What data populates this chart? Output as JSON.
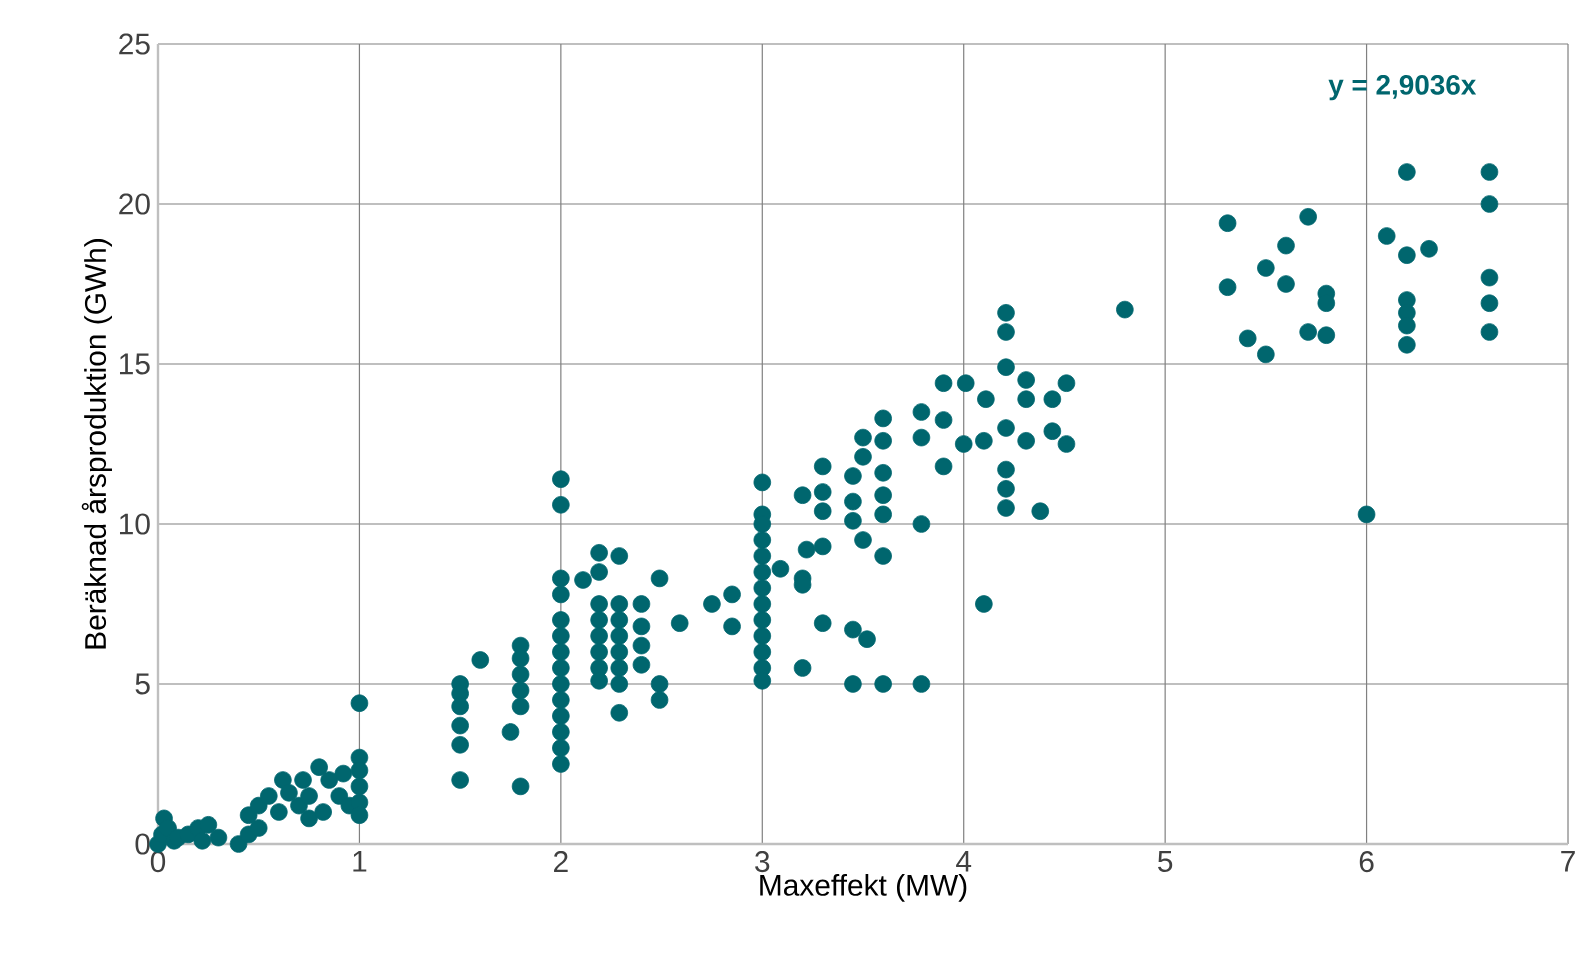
{
  "chart_data": {
    "type": "scatter",
    "xlabel": "Maxeffekt (MW)",
    "ylabel": "Beräknad årsproduktion (GWh)",
    "annotations": [
      "y = 2,9036x"
    ],
    "xlim": [
      0,
      7
    ],
    "ylim": [
      0,
      25
    ],
    "xticks": [
      0,
      1,
      2,
      3,
      4,
      5,
      6,
      7
    ],
    "yticks": [
      0,
      5,
      10,
      15,
      20,
      25
    ],
    "grid": true,
    "series": [
      {
        "color": "#00666e",
        "x": [
          0,
          0.02,
          0.03,
          0.05,
          0.08,
          0.1,
          0.15,
          0.2,
          0.22,
          0.25,
          0.3,
          0.4,
          0.45,
          0.45,
          0.5,
          0.5,
          0.55,
          0.6,
          0.62,
          0.65,
          0.7,
          0.72,
          0.75,
          0.75,
          0.8,
          0.82,
          0.85,
          0.9,
          0.92,
          0.95,
          1,
          1,
          1,
          1,
          1,
          1,
          1.5,
          1.5,
          1.5,
          1.5,
          1.5,
          1.5,
          1.6,
          1.75,
          1.8,
          1.8,
          1.8,
          1.8,
          1.8,
          1.8,
          2,
          2,
          2,
          2,
          2,
          2,
          2,
          2,
          2,
          2,
          2,
          2,
          2,
          2,
          2.11,
          2.19,
          2.19,
          2.19,
          2.19,
          2.19,
          2.19,
          2.19,
          2.19,
          2.29,
          2.29,
          2.29,
          2.29,
          2.29,
          2.29,
          2.29,
          2.29,
          2.4,
          2.4,
          2.4,
          2.4,
          2.49,
          2.49,
          2.49,
          2.59,
          2.75,
          2.85,
          2.85,
          3,
          3,
          3,
          3,
          3,
          3,
          3,
          3,
          3,
          3,
          3,
          3,
          3,
          3.09,
          3.2,
          3.2,
          3.2,
          3.2,
          3.22,
          3.3,
          3.3,
          3.3,
          3.3,
          3.3,
          3.45,
          3.45,
          3.45,
          3.45,
          3.45,
          3.5,
          3.5,
          3.5,
          3.52,
          3.6,
          3.6,
          3.6,
          3.6,
          3.6,
          3.6,
          3.6,
          3.79,
          3.79,
          3.79,
          3.79,
          3.9,
          3.9,
          3.9,
          4,
          4.01,
          4.1,
          4.1,
          4.11,
          4.21,
          4.21,
          4.21,
          4.21,
          4.21,
          4.21,
          4.21,
          4.31,
          4.31,
          4.31,
          4.38,
          4.44,
          4.44,
          4.51,
          4.51,
          4.8,
          5.31,
          5.31,
          5.41,
          5.5,
          5.5,
          5.6,
          5.6,
          5.71,
          5.71,
          5.8,
          5.8,
          5.8,
          6,
          6.1,
          6.2,
          6.2,
          6.2,
          6.2,
          6.2,
          6.2,
          6.31,
          6.61,
          6.61,
          6.61,
          6.61,
          6.61
        ],
        "values": [
          0,
          0.3,
          0.8,
          0.5,
          0.1,
          0.2,
          0.3,
          0.5,
          0.1,
          0.6,
          0.2,
          0,
          0.3,
          0.9,
          1.2,
          0.5,
          1.5,
          1,
          2,
          1.6,
          1.2,
          2,
          1.5,
          0.8,
          2.4,
          1,
          2,
          1.5,
          2.2,
          1.2,
          4.4,
          2.7,
          2.3,
          1.8,
          1.3,
          0.9,
          5,
          4.7,
          4.3,
          3.7,
          3.1,
          2,
          5.75,
          3.5,
          6.2,
          5.8,
          5.3,
          4.8,
          4.3,
          1.8,
          11.4,
          10.6,
          8.3,
          7.8,
          7,
          6.5,
          6,
          5.5,
          5,
          4.5,
          4,
          3.5,
          3,
          2.5,
          8.25,
          9.1,
          8.5,
          7.5,
          7,
          6.5,
          6,
          5.5,
          5.1,
          9,
          7.5,
          7,
          6.5,
          6,
          5.5,
          5,
          4.1,
          7.5,
          6.8,
          6.2,
          5.6,
          8.3,
          5,
          4.5,
          6.9,
          7.5,
          7.8,
          6.8,
          11.3,
          10.3,
          10,
          9.5,
          9,
          8.5,
          8,
          7.5,
          7,
          6.5,
          6,
          5.5,
          5.1,
          8.6,
          10.9,
          8.3,
          8.1,
          5.5,
          9.2,
          11.8,
          11,
          10.4,
          9.3,
          6.9,
          11.5,
          10.7,
          10.1,
          6.7,
          5,
          12.7,
          12.1,
          9.5,
          6.4,
          13.3,
          12.6,
          11.6,
          10.9,
          10.3,
          9,
          5,
          13.5,
          12.7,
          10,
          5,
          14.4,
          13.25,
          11.8,
          12.5,
          14.4,
          12.6,
          7.5,
          13.9,
          16.6,
          16,
          14.9,
          13,
          11.7,
          11.1,
          10.5,
          14.5,
          13.9,
          12.6,
          10.4,
          13.9,
          12.9,
          14.4,
          12.5,
          16.7,
          19.4,
          17.4,
          15.8,
          18,
          15.3,
          18.7,
          17.5,
          19.6,
          16,
          17.2,
          16.9,
          15.9,
          10.3,
          19,
          21,
          18.4,
          17,
          16.6,
          16.2,
          15.6,
          18.6,
          21,
          20,
          17.7,
          16.9,
          16
        ]
      }
    ]
  }
}
